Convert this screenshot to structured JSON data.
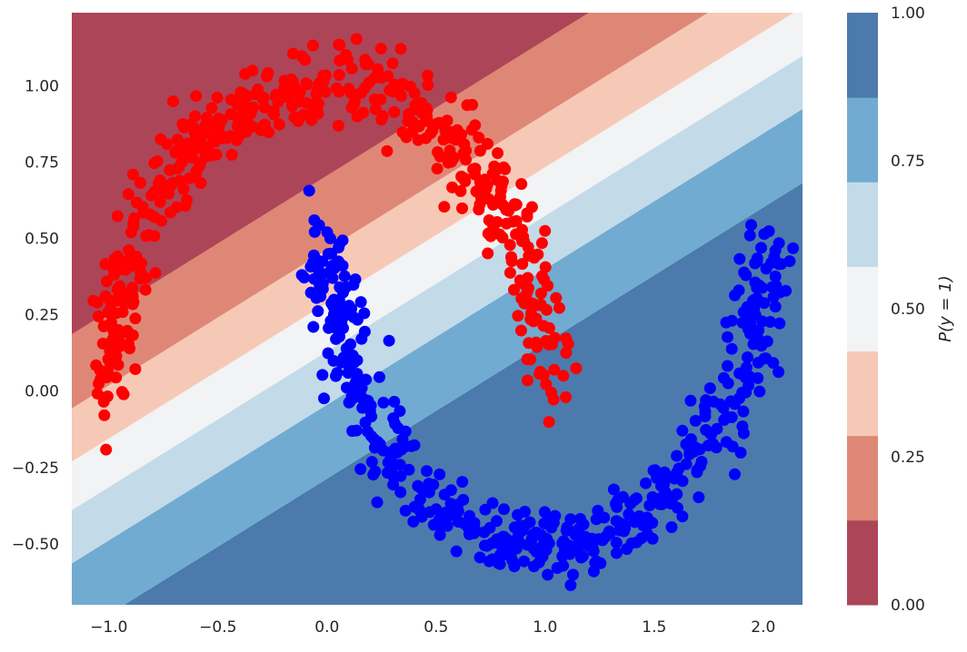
{
  "chart_data": {
    "type": "scatter",
    "title": "",
    "xlabel": "",
    "ylabel": "",
    "xlim": [
      -1.17,
      2.18
    ],
    "ylim": [
      -0.7,
      1.24
    ],
    "x_ticks": [
      -1.0,
      -0.5,
      0.0,
      0.5,
      1.0,
      1.5,
      2.0
    ],
    "x_tick_labels": [
      "−1.0",
      "−0.5",
      "0.0",
      "0.5",
      "1.0",
      "1.5",
      "2.0"
    ],
    "y_ticks": [
      -0.5,
      -0.25,
      0.0,
      0.25,
      0.5,
      0.75,
      1.0
    ],
    "y_tick_labels": [
      "−0.50",
      "−0.25",
      "0.00",
      "0.25",
      "0.50",
      "0.75",
      "1.00"
    ],
    "grid": false,
    "dataset": "two interleaving half-moons, ~1000 noisy points (noise std ~0.06)",
    "series": [
      {
        "name": "",
        "color": "#ff0000",
        "shape": "upper half-moon: center (0, 0), radius 1, angle 0 to 180 degrees",
        "x": [
          1.0,
          0.966,
          0.866,
          0.707,
          0.5,
          0.259,
          0.0,
          -0.259,
          -0.5,
          -0.707,
          -0.866,
          -0.966,
          -1.0
        ],
        "y": [
          0.0,
          0.259,
          0.5,
          0.707,
          0.866,
          0.966,
          1.0,
          0.966,
          0.866,
          0.707,
          0.5,
          0.259,
          0.0
        ]
      },
      {
        "name": "",
        "color": "#0000ff",
        "shape": "lower half-moon: center (1, 0.5), radius 1, angle 180 to 360 degrees",
        "x": [
          0.0,
          0.034,
          0.134,
          0.293,
          0.5,
          0.741,
          1.0,
          1.259,
          1.5,
          1.707,
          1.866,
          1.966,
          2.0
        ],
        "y": [
          0.5,
          0.241,
          0.0,
          -0.207,
          -0.366,
          -0.466,
          -0.5,
          -0.466,
          -0.366,
          -0.207,
          0.0,
          0.241,
          0.5
        ]
      }
    ],
    "decision_surface": {
      "type": "filled contour of linear logistic regression probability",
      "p_function": "P = 1 / (1 + exp(-(w1*x + w2*y + b)))",
      "w1": 1.6,
      "w2": -3.6,
      "b": 0.75,
      "levels": [
        0.0,
        0.1429,
        0.2857,
        0.4286,
        0.5714,
        0.7143,
        0.8571,
        1.0
      ],
      "band_colors": [
        "#a83b4f",
        "#dd8170",
        "#f5c6b3",
        "#f1f2f4",
        "#c0d8e8",
        "#69a7cf",
        "#4373a8"
      ],
      "alpha": 0.95
    },
    "colorbar": {
      "label": "P(y = 1)",
      "ticks": [
        0.0,
        0.25,
        0.5,
        0.75,
        1.0
      ],
      "tick_labels": [
        "0.00",
        "0.25",
        "0.50",
        "0.75",
        "1.00"
      ]
    }
  }
}
